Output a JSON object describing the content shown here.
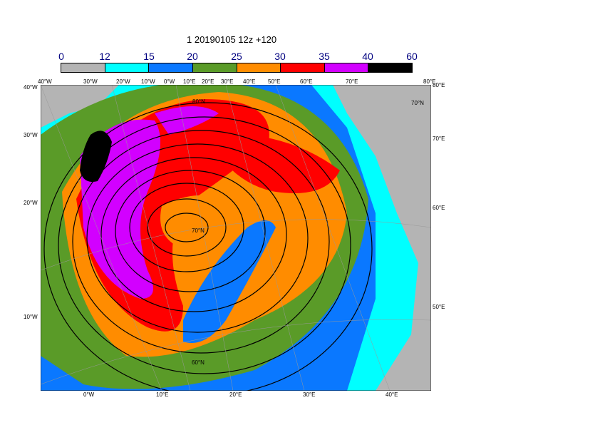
{
  "title": "1 20190105 12z +120",
  "colorbar": {
    "labels": [
      "0",
      "12",
      "15",
      "20",
      "25",
      "30",
      "35",
      "40",
      "60"
    ],
    "colors": [
      "#b4b4b4",
      "#00ffff",
      "#0a78ff",
      "#5a9b28",
      "#ff8c00",
      "#ff0000",
      "#d200ff",
      "#000000"
    ]
  },
  "top_labels": [
    "40°W",
    "30°W",
    "20°W",
    "10°W",
    "0°W",
    "10°E",
    "20°E",
    "30°E",
    "40°E",
    "50°E",
    "60°E",
    "70°E",
    "80°E"
  ],
  "left_labels": [
    "40°W",
    "30°W",
    "20°W",
    "10°W"
  ],
  "right_labels": [
    "80°E",
    "70°E",
    "60°E",
    "50°E"
  ],
  "bottom_labels": [
    "0°W",
    "10°E",
    "20°E",
    "30°E",
    "40°E"
  ],
  "map_labels": [
    "80°N",
    "70°N",
    "70°N",
    "60°N"
  ]
}
